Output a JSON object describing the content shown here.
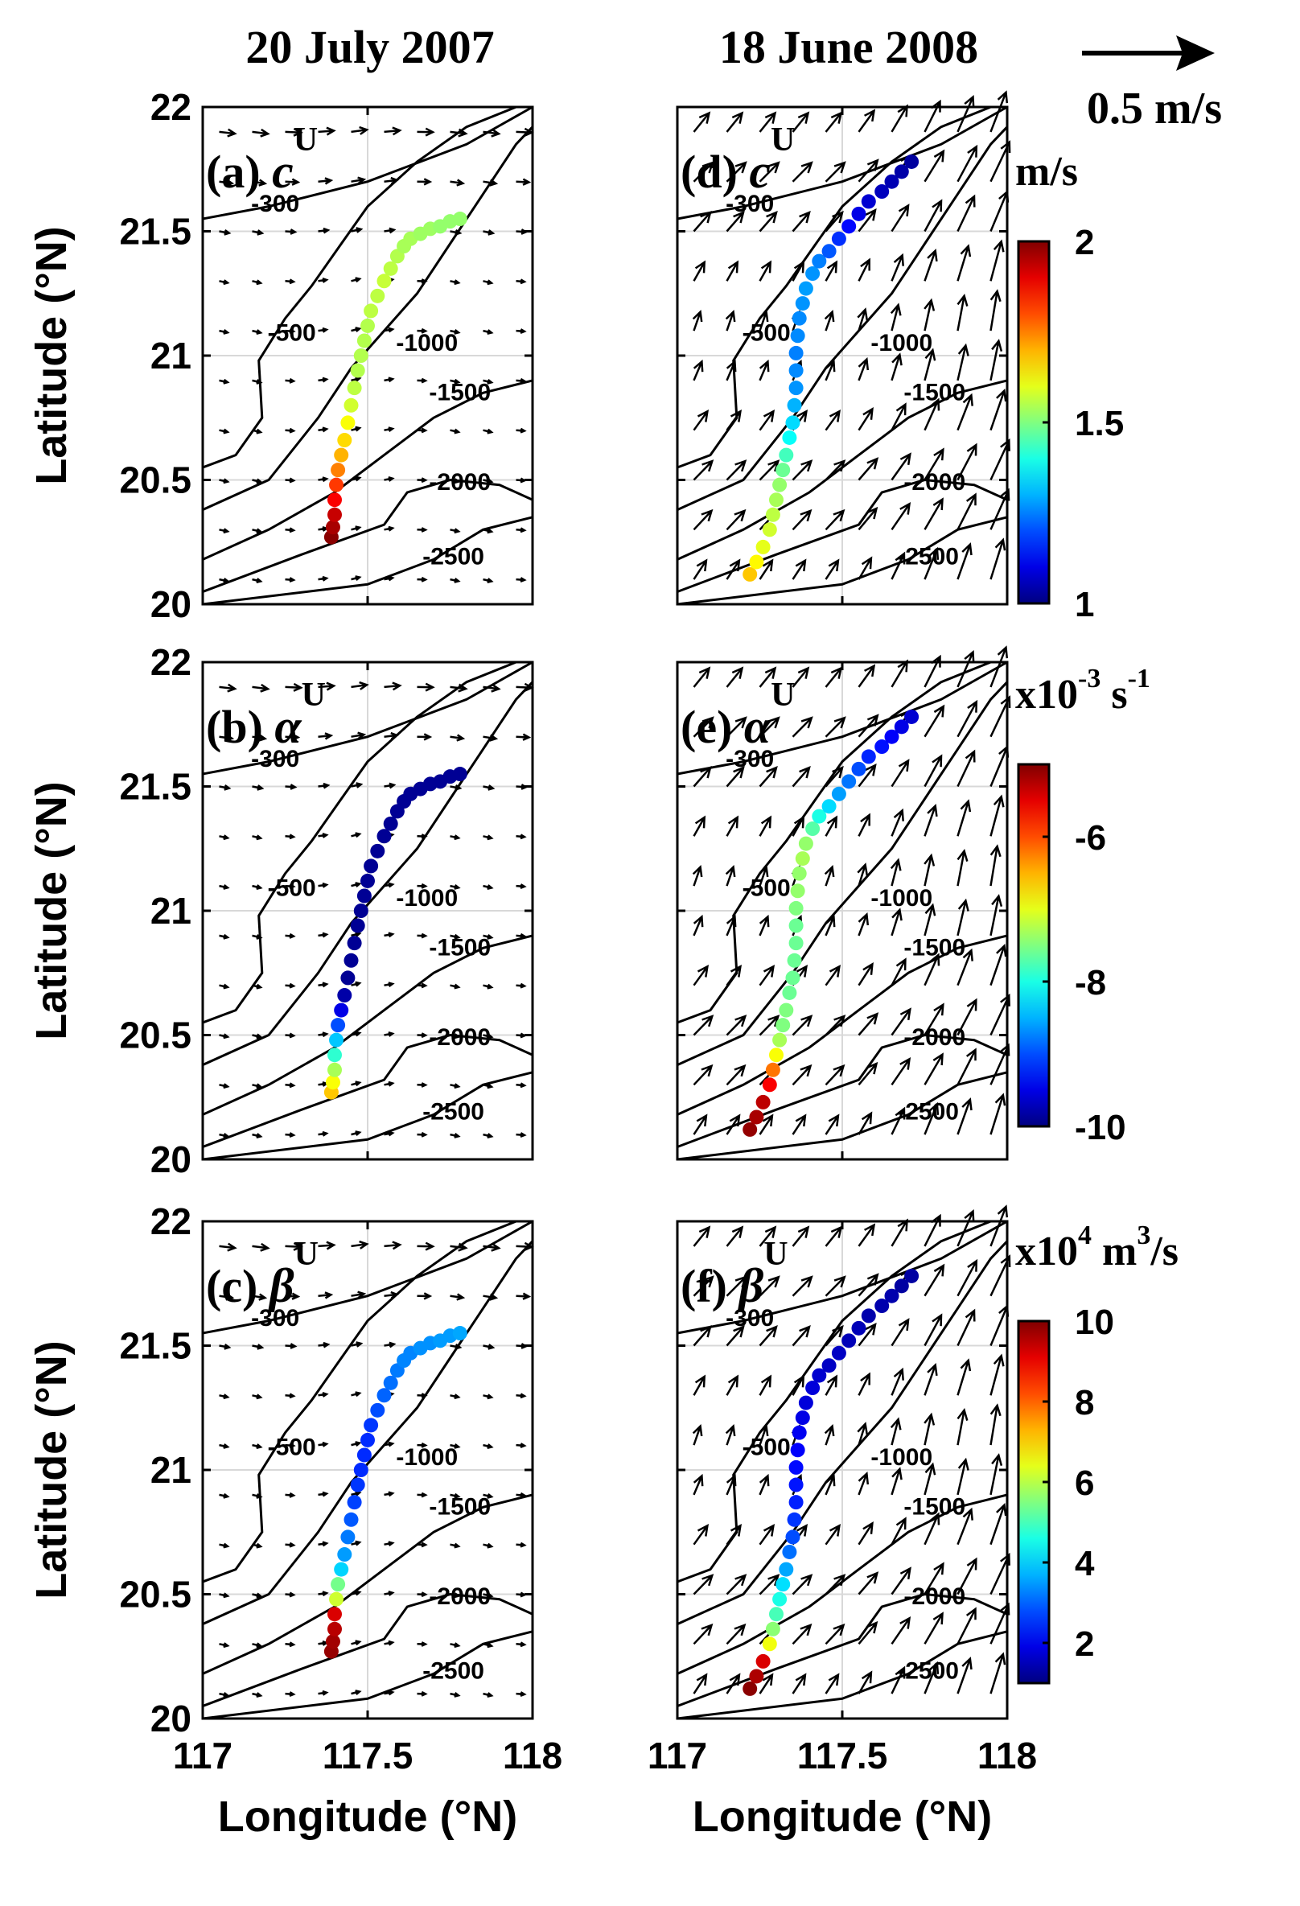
{
  "column_titles": [
    "20 July 2007",
    "18 June 2008"
  ],
  "reference_arrow": {
    "label": "0.5 m/s",
    "speed": 0.5
  },
  "contour_levels": [
    "-300",
    "-500",
    "-1000",
    "-1500",
    "-2000",
    "-2500"
  ],
  "colorbars": [
    {
      "unit": "m/s",
      "unit_sup": "",
      "unit_tail": "",
      "min": 1,
      "max": 2,
      "ticks": [
        "2",
        "1.5",
        "1"
      ],
      "tick_values": [
        2,
        1.5,
        1
      ]
    },
    {
      "unit": "x10",
      "unit_sup": "-3",
      "unit_tail": " s",
      "unit_sup2": "-1",
      "min": -10,
      "max": -5,
      "ticks": [
        "-6",
        "-8",
        "-10"
      ],
      "tick_values": [
        -6,
        -8,
        -10
      ]
    },
    {
      "unit": "x10",
      "unit_sup": "4",
      "unit_tail": " m",
      "unit_sup2": "3",
      "unit_tail2": "/s",
      "min": 1,
      "max": 10,
      "ticks": [
        "10",
        "8",
        "6",
        "4",
        "2"
      ],
      "tick_values": [
        10,
        8,
        6,
        4,
        2
      ]
    }
  ],
  "colormap": "jet",
  "chart_data": [
    {
      "type": "scatter",
      "panel": "(a)",
      "symbol": "c",
      "symbol_sup": "U",
      "xlim": [
        117,
        118
      ],
      "ylim": [
        20,
        22
      ],
      "xticks": [
        "117",
        "117.5",
        "118"
      ],
      "yticks": [
        "20",
        "20.5",
        "21",
        "21.5",
        "22"
      ],
      "xlabel": "",
      "ylabel": "Latitude (°N)",
      "grid": true,
      "x": [
        117.39,
        117.395,
        117.4,
        117.4,
        117.405,
        117.41,
        117.42,
        117.43,
        117.44,
        117.45,
        117.46,
        117.47,
        117.48,
        117.49,
        117.5,
        117.51,
        117.53,
        117.55,
        117.57,
        117.59,
        117.61,
        117.63,
        117.66,
        117.69,
        117.72,
        117.75,
        117.78
      ],
      "y": [
        20.27,
        20.31,
        20.36,
        20.42,
        20.48,
        20.54,
        20.6,
        20.66,
        20.73,
        20.8,
        20.87,
        20.94,
        21.0,
        21.06,
        21.12,
        21.18,
        21.24,
        21.3,
        21.35,
        21.4,
        21.44,
        21.47,
        21.49,
        21.51,
        21.52,
        21.54,
        21.55
      ],
      "values": [
        1.99,
        1.96,
        1.93,
        1.88,
        1.82,
        1.75,
        1.7,
        1.66,
        1.62,
        1.58,
        1.56,
        1.55,
        1.55,
        1.55,
        1.55,
        1.56,
        1.56,
        1.57,
        1.56,
        1.55,
        1.54,
        1.54,
        1.53,
        1.53,
        1.52,
        1.52,
        1.52
      ]
    },
    {
      "type": "scatter",
      "panel": "(b)",
      "symbol": "α",
      "symbol_sup": "U",
      "xlim": [
        117,
        118
      ],
      "ylim": [
        20,
        22
      ],
      "xticks": [
        "117",
        "117.5",
        "118"
      ],
      "yticks": [
        "20",
        "20.5",
        "21",
        "21.5",
        "22"
      ],
      "xlabel": "",
      "ylabel": "Latitude (°N)",
      "grid": true,
      "x": [
        117.39,
        117.395,
        117.4,
        117.4,
        117.405,
        117.41,
        117.42,
        117.43,
        117.44,
        117.45,
        117.46,
        117.47,
        117.48,
        117.49,
        117.5,
        117.51,
        117.53,
        117.55,
        117.57,
        117.59,
        117.61,
        117.63,
        117.66,
        117.69,
        117.72,
        117.75,
        117.78
      ],
      "y": [
        20.27,
        20.31,
        20.36,
        20.42,
        20.48,
        20.54,
        20.6,
        20.66,
        20.73,
        20.8,
        20.87,
        20.94,
        21.0,
        21.06,
        21.12,
        21.18,
        21.24,
        21.3,
        21.35,
        21.4,
        21.44,
        21.47,
        21.49,
        21.51,
        21.52,
        21.54,
        21.55
      ],
      "values": [
        -6.6,
        -6.9,
        -7.3,
        -7.9,
        -8.4,
        -9.0,
        -9.5,
        -9.8,
        -9.9,
        -9.9,
        -9.9,
        -9.9,
        -9.9,
        -9.9,
        -9.9,
        -9.9,
        -9.9,
        -9.9,
        -9.9,
        -9.9,
        -9.9,
        -9.9,
        -9.9,
        -9.9,
        -9.9,
        -9.9,
        -9.9
      ]
    },
    {
      "type": "scatter",
      "panel": "(c)",
      "symbol": "β",
      "symbol_sup": "U",
      "xlim": [
        117,
        118
      ],
      "ylim": [
        20,
        22
      ],
      "xticks": [
        "117",
        "117.5",
        "118"
      ],
      "yticks": [
        "20",
        "20.5",
        "21",
        "21.5",
        "22"
      ],
      "xlabel": "Longitude (°N)",
      "ylabel": "Latitude (°N)",
      "grid": true,
      "x": [
        117.39,
        117.395,
        117.4,
        117.4,
        117.405,
        117.41,
        117.42,
        117.43,
        117.44,
        117.45,
        117.46,
        117.47,
        117.48,
        117.49,
        117.5,
        117.51,
        117.53,
        117.55,
        117.57,
        117.59,
        117.61,
        117.63,
        117.66,
        117.69,
        117.72,
        117.75,
        117.78
      ],
      "y": [
        20.27,
        20.31,
        20.36,
        20.42,
        20.48,
        20.54,
        20.6,
        20.66,
        20.73,
        20.8,
        20.87,
        20.94,
        21.0,
        21.06,
        21.12,
        21.18,
        21.24,
        21.3,
        21.35,
        21.4,
        21.44,
        21.47,
        21.49,
        21.51,
        21.52,
        21.54,
        21.55
      ],
      "values": [
        9.8,
        9.7,
        9.5,
        9.2,
        6.2,
        5.4,
        4.0,
        3.5,
        3.2,
        2.9,
        2.7,
        2.6,
        2.5,
        2.5,
        2.5,
        2.6,
        2.8,
        3.0,
        3.1,
        3.2,
        3.3,
        3.3,
        3.4,
        3.4,
        3.5,
        3.5,
        3.6
      ]
    },
    {
      "type": "scatter",
      "panel": "(d)",
      "symbol": "c",
      "symbol_sup": "U",
      "xlim": [
        117,
        118
      ],
      "ylim": [
        20,
        22
      ],
      "xticks": [
        "117",
        "117.5",
        "118"
      ],
      "yticks": [],
      "xlabel": "",
      "ylabel": "",
      "grid": true,
      "x": [
        117.22,
        117.24,
        117.26,
        117.28,
        117.29,
        117.3,
        117.31,
        117.32,
        117.33,
        117.34,
        117.35,
        117.355,
        117.36,
        117.36,
        117.36,
        117.365,
        117.37,
        117.38,
        117.39,
        117.41,
        117.43,
        117.46,
        117.49,
        117.52,
        117.55,
        117.58,
        117.62,
        117.65,
        117.68,
        117.71
      ],
      "y": [
        20.12,
        20.17,
        20.23,
        20.3,
        20.36,
        20.42,
        20.48,
        20.54,
        20.6,
        20.67,
        20.73,
        20.8,
        20.87,
        20.94,
        21.01,
        21.08,
        21.15,
        21.21,
        21.27,
        21.33,
        21.38,
        21.42,
        21.47,
        21.52,
        21.57,
        21.62,
        21.66,
        21.7,
        21.74,
        21.78
      ],
      "values": [
        1.68,
        1.63,
        1.6,
        1.58,
        1.56,
        1.54,
        1.52,
        1.48,
        1.44,
        1.38,
        1.34,
        1.3,
        1.27,
        1.26,
        1.25,
        1.26,
        1.26,
        1.27,
        1.28,
        1.27,
        1.25,
        1.21,
        1.17,
        1.13,
        1.1,
        1.08,
        1.06,
        1.05,
        1.04,
        1.03
      ]
    },
    {
      "type": "scatter",
      "panel": "(e)",
      "symbol": "α",
      "symbol_sup": "U",
      "xlim": [
        117,
        118
      ],
      "ylim": [
        20,
        22
      ],
      "xticks": [
        "117",
        "117.5",
        "118"
      ],
      "yticks": [],
      "xlabel": "",
      "ylabel": "",
      "grid": true,
      "x": [
        117.22,
        117.24,
        117.26,
        117.28,
        117.29,
        117.3,
        117.31,
        117.32,
        117.33,
        117.34,
        117.35,
        117.355,
        117.36,
        117.36,
        117.36,
        117.365,
        117.37,
        117.38,
        117.39,
        117.41,
        117.43,
        117.46,
        117.49,
        117.52,
        117.55,
        117.58,
        117.62,
        117.65,
        117.68,
        117.71
      ],
      "y": [
        20.12,
        20.17,
        20.23,
        20.3,
        20.36,
        20.42,
        20.48,
        20.54,
        20.6,
        20.67,
        20.73,
        20.8,
        20.87,
        20.94,
        21.01,
        21.08,
        21.15,
        21.21,
        21.27,
        21.33,
        21.38,
        21.42,
        21.47,
        21.52,
        21.57,
        21.62,
        21.66,
        21.7,
        21.74,
        21.78
      ],
      "values": [
        -5.1,
        -5.2,
        -5.3,
        -5.6,
        -6.2,
        -6.9,
        -7.3,
        -7.5,
        -7.5,
        -7.6,
        -7.6,
        -7.6,
        -7.6,
        -7.6,
        -7.5,
        -7.4,
        -7.4,
        -7.3,
        -7.4,
        -7.7,
        -8.0,
        -8.3,
        -8.6,
        -8.8,
        -9.0,
        -9.2,
        -9.3,
        -9.4,
        -9.5,
        -9.6
      ]
    },
    {
      "type": "scatter",
      "panel": "(f)",
      "symbol": "β",
      "symbol_sup": "U",
      "xlim": [
        117,
        118
      ],
      "ylim": [
        20,
        22
      ],
      "xticks": [
        "117",
        "117.5",
        "118"
      ],
      "yticks": [],
      "xlabel": "Longitude (°N)",
      "ylabel": "",
      "grid": true,
      "x": [
        117.22,
        117.24,
        117.26,
        117.28,
        117.29,
        117.3,
        117.31,
        117.32,
        117.33,
        117.34,
        117.35,
        117.355,
        117.36,
        117.36,
        117.36,
        117.365,
        117.37,
        117.38,
        117.39,
        117.41,
        117.43,
        117.46,
        117.49,
        117.52,
        117.55,
        117.58,
        117.62,
        117.65,
        117.68,
        117.71
      ],
      "y": [
        20.12,
        20.17,
        20.23,
        20.3,
        20.36,
        20.42,
        20.48,
        20.54,
        20.6,
        20.67,
        20.73,
        20.8,
        20.87,
        20.94,
        21.01,
        21.08,
        21.15,
        21.21,
        21.27,
        21.33,
        21.38,
        21.42,
        21.47,
        21.52,
        21.57,
        21.62,
        21.66,
        21.7,
        21.74,
        21.78
      ],
      "values": [
        9.9,
        9.6,
        9.2,
        6.5,
        5.6,
        5.0,
        4.6,
        4.1,
        3.6,
        3.1,
        2.8,
        2.6,
        2.4,
        2.3,
        2.2,
        2.1,
        2.0,
        1.9,
        1.8,
        1.8,
        1.7,
        1.6,
        1.6,
        1.5,
        1.5,
        1.4,
        1.4,
        1.4,
        1.3,
        1.3
      ]
    }
  ]
}
